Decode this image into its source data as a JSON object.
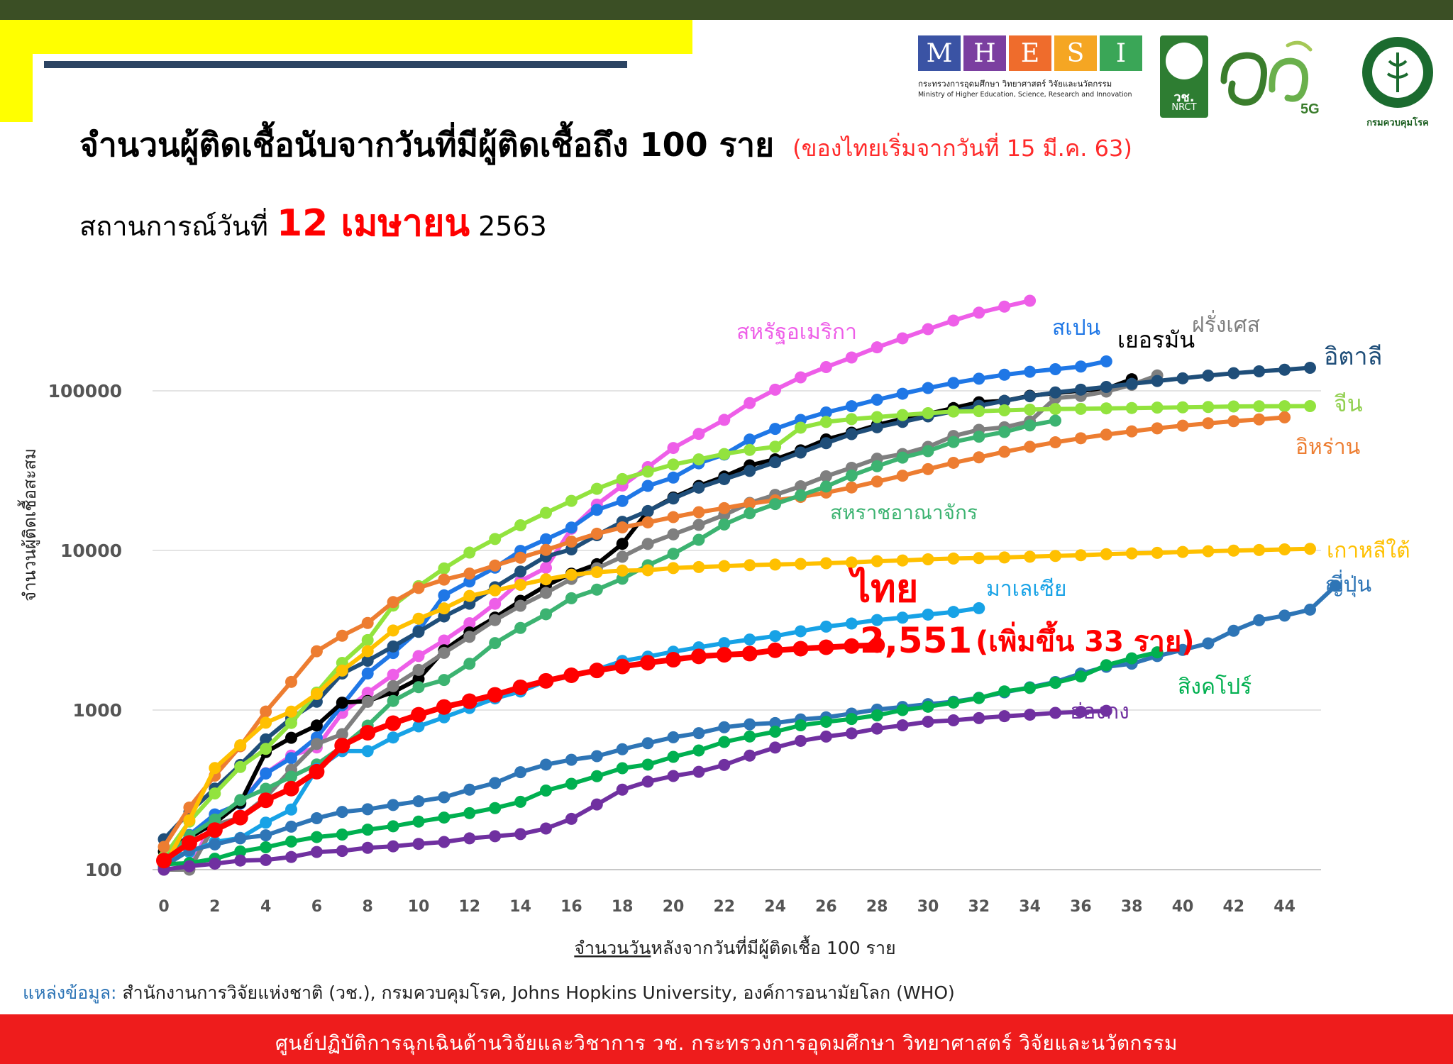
{
  "header": {
    "title": "จำนวนผู้ติดเชื้อนับจากวันที่มีผู้ติดเชื้อถึง 100 ราย",
    "title_note": "(ของไทยเริ่มจากวันที่ 15 มี.ค. 63)",
    "subtitle_prefix": "สถานการณ์วันที่",
    "subtitle_date": "12 เมษายน",
    "subtitle_year": "2563"
  },
  "logos": {
    "mhesi_letters": [
      "M",
      "H",
      "E",
      "S",
      "I"
    ],
    "mhesi_colors": [
      "#3a53a4",
      "#7b3fa0",
      "#ef6c2c",
      "#f5a623",
      "#3aa657"
    ],
    "mhesi_thai": "กระทรวงการอุดมศึกษา วิทยาศาสตร์ วิจัยและนวัตกรรม",
    "mhesi_english": "Ministry of Higher Education, Science, Research and Innovation",
    "nrct_thai": "วช.",
    "nrct_english": "NRCT",
    "anniversary_5g": "5G",
    "moph_thai": "กรมควบคุมโรค"
  },
  "source": {
    "label": "แหล่งข้อมูล:",
    "text": "สำนักงานการวิจัยแห่งชาติ (วช.), กรมควบคุมโรค, Johns Hopkins University, องค์การอนามัยโลก (WHO)"
  },
  "footer": {
    "text": "ศูนย์ปฏิบัติการฉุกเฉินด้านวิจัยและวิชาการ   วช.   กระทรวงการอุดมศึกษา วิทยาศาสตร์ วิจัยและนวัตกรรม"
  },
  "chart_data": {
    "type": "line",
    "scale": "log",
    "xlabel_underlined": "จำนวนวัน",
    "xlabel_rest": "หลังจากวันที่มีผู้ติดเชื้อ 100 ราย",
    "ylabel": "จำนวนผู้ติดเชื้อสะสม",
    "xlim": [
      0,
      45.5
    ],
    "ylim": [
      100,
      450000
    ],
    "x_ticks": [
      0,
      2,
      4,
      6,
      8,
      10,
      12,
      14,
      16,
      18,
      20,
      22,
      24,
      26,
      28,
      30,
      32,
      34,
      36,
      38,
      40,
      42,
      44
    ],
    "y_ticks": [
      100,
      1000,
      10000,
      100000
    ],
    "y_tick_labels": [
      "100",
      "1000",
      "10000",
      "100000"
    ],
    "thailand_annotation": {
      "name": "ไทย",
      "value": "2,551",
      "increase": "(เพิ่มขึ้น 33 ราย)"
    },
    "series": [
      {
        "name": "สหรัฐอเมริกา",
        "color": "#ee5ee8",
        "values": [
          100,
          101,
          212,
          262,
          402,
          518,
          583,
          959,
          1281,
          1663,
          2179,
          2727,
          3499,
          4632,
          6421,
          7786,
          13680,
          19383,
          25493,
          33276,
          43847,
          53740,
          65778,
          83836,
          101657,
          121478,
          140886,
          161807,
          187302,
          213372,
          243453,
          275586,
          308850,
          337072,
          366667
        ]
      },
      {
        "name": "สเปน",
        "color": "#1f77e6",
        "values": [
          120,
          165,
          222,
          259,
          400,
          500,
          673,
          1073,
          1695,
          2277,
          3146,
          5232,
          6391,
          7798,
          9942,
          11748,
          13910,
          17963,
          20410,
          25374,
          28603,
          35136,
          39885,
          49515,
          57786,
          65719,
          73235,
          80110,
          87956,
          95923,
          104118,
          112065,
          119199,
          126168,
          131646,
          136675,
          141942,
          153000
        ]
      },
      {
        "name": "เยอรมัน",
        "color": "#000000",
        "values": [
          130,
          159,
          196,
          262,
          545,
          670,
          800,
          1112,
          1139,
          1296,
          1567,
          2369,
          3062,
          3795,
          4838,
          6012,
          7156,
          8198,
          10999,
          17588,
          21463,
          25346,
          29047,
          34143,
          37231,
          42403,
          49614,
          54678,
          61086,
          66885,
          71808,
          77981,
          84794,
          86500,
          93100,
          96800,
          100300,
          103228,
          118181
        ]
      },
      {
        "name": "ฝรั่งเศส",
        "color": "#7f7f7f",
        "values": [
          100,
          100,
          191,
          212,
          285,
          423,
          613,
          706,
          1126,
          1412,
          1784,
          2281,
          2876,
          3661,
          4499,
          5423,
          6633,
          7730,
          9134,
          10995,
          12612,
          14459,
          16689,
          19856,
          22304,
          25233,
          29155,
          32964,
          37575,
          40174,
          44550,
          52128,
          56989,
          59105,
          64338,
          89953,
          92839,
          98984,
          109069,
          124869
        ]
      },
      {
        "name": "อิตาลี",
        "color": "#1f4e79",
        "values": [
          155,
          229,
          322,
          453,
          655,
          888,
          1128,
          1694,
          2036,
          2502,
          3089,
          3858,
          4636,
          5883,
          7375,
          9172,
          10149,
          12462,
          15113,
          17660,
          21157,
          24747,
          27980,
          31506,
          35713,
          41035,
          47021,
          53578,
          59138,
          63927,
          69176,
          74386,
          80589,
          86498,
          92472,
          97689,
          101739,
          105792,
          110574,
          115242,
          119827,
          124632,
          128948,
          132547,
          135586,
          139422
        ]
      },
      {
        "name": "จีน",
        "color": "#92e33e",
        "values": [
          120,
          200,
          300,
          440,
          571,
          830,
          1287,
          1975,
          2744,
          4515,
          5974,
          7711,
          9692,
          11791,
          14380,
          17205,
          20438,
          24324,
          28018,
          31161,
          34546,
          37198,
          40171,
          42638,
          44653,
          58761,
          63851,
          66492,
          68500,
          70548,
          72436,
          74185,
          74576,
          75465,
          76288,
          76936,
          77150,
          77658,
          78064,
          78497,
          78824,
          79251,
          79824,
          80026,
          80151,
          80271
        ]
      },
      {
        "name": "อิหร่าน",
        "color": "#ed7d31",
        "values": [
          139,
          245,
          388,
          593,
          978,
          1501,
          2336,
          2922,
          3513,
          4747,
          5823,
          6566,
          7161,
          8042,
          9000,
          10075,
          11364,
          12729,
          13938,
          14991,
          16169,
          17361,
          18407,
          19644,
          20610,
          21638,
          23049,
          24811,
          27017,
          29406,
          32332,
          35408,
          38309,
          41495,
          44605,
          47593,
          50468,
          53183,
          55743,
          58226,
          60500,
          62589,
          64586,
          66220,
          68192
        ]
      },
      {
        "name": "สหราชอาณาจักร",
        "color": "#3cb371",
        "values": [
          115,
          163,
          206,
          273,
          321,
          382,
          456,
          590,
          798,
          1140,
          1391,
          1543,
          1950,
          2626,
          3269,
          3983,
          5018,
          5683,
          6650,
          8077,
          9529,
          11658,
          14543,
          17089,
          19522,
          22141,
          25150,
          29474,
          33718,
          38168,
          41903,
          47806,
          51608,
          55242,
          60733,
          65077
        ]
      },
      {
        "name": "เกาหลีใต้",
        "color": "#ffc000",
        "values": [
          104,
          204,
          433,
          602,
          833,
          977,
          1261,
          1766,
          2337,
          3150,
          3736,
          4335,
          5186,
          5621,
          6088,
          6593,
          7041,
          7314,
          7478,
          7513,
          7755,
          7869,
          7979,
          8086,
          8162,
          8236,
          8320,
          8413,
          8565,
          8652,
          8799,
          8897,
          8961,
          9037,
          9137,
          9241,
          9332,
          9478,
          9583,
          9661,
          9786,
          9887,
          9976,
          10062,
          10156,
          10237
        ]
      },
      {
        "name": "มาเลเซีย",
        "color": "#17a2e6",
        "values": [
          117,
          129,
          149,
          158,
          197,
          238,
          428,
          553,
          553,
          673,
          790,
          900,
          1030,
          1183,
          1306,
          1518,
          1624,
          1796,
          2031,
          2161,
          2320,
          2470,
          2626,
          2766,
          2908,
          3116,
          3333,
          3483,
          3662,
          3793,
          3963,
          4119,
          4346
        ]
      },
      {
        "name": "ไทย",
        "color": "#ff0000",
        "values": [
          114,
          147,
          177,
          212,
          272,
          322,
          411,
          599,
          721,
          827,
          934,
          1045,
          1136,
          1245,
          1388,
          1524,
          1651,
          1771,
          1875,
          1978,
          2067,
          2169,
          2220,
          2258,
          2369,
          2423,
          2473,
          2518,
          2551
        ]
      },
      {
        "name": "ญี่ปุ่น",
        "color": "#2e75b6",
        "values": [
          105,
          132,
          144,
          157,
          164,
          186,
          210,
          230,
          239,
          254,
          268,
          284,
          317,
          349,
          408,
          455,
          488,
          514,
          568,
          620,
          675,
          716,
          780,
          814,
          829,
          873,
          900,
          950,
          1007,
          1046,
          1089,
          1128,
          1193,
          1291,
          1387,
          1499,
          1693,
          1866,
          1953,
          2178,
          2381,
          2617,
          3139,
          3654,
          3906,
          4257,
          6005
        ]
      },
      {
        "name": "สิงคโปร์",
        "color": "#00b050",
        "values": [
          108,
          110,
          117,
          130,
          138,
          150,
          160,
          166,
          178,
          187,
          200,
          212,
          226,
          243,
          266,
          313,
          345,
          385,
          432,
          455,
          509,
          558,
          631,
          683,
          732,
          802,
          844,
          879,
          926,
          1000,
          1049,
          1114,
          1189,
          1309,
          1375,
          1481,
          1623,
          1910,
          2108,
          2299
        ]
      },
      {
        "name": "ฮ่องกง",
        "color": "#7030a0",
        "values": [
          100,
          105,
          109,
          114,
          115,
          120,
          129,
          131,
          137,
          140,
          145,
          149,
          157,
          162,
          167,
          181,
          208,
          256,
          317,
          356,
          386,
          410,
          453,
          518,
          582,
          641,
          682,
          714,
          765,
          802,
          845,
          862,
          890,
          915,
          935,
          960,
          974,
          989
        ]
      }
    ],
    "series_labels": [
      {
        "text": "สหรัฐอเมริกา",
        "color": "#ee5ee8"
      },
      {
        "text": "สเปน",
        "color": "#1f77e6"
      },
      {
        "text": "เยอรมัน",
        "color": "#000000"
      },
      {
        "text": "ฝรั่งเศส",
        "color": "#7f7f7f"
      },
      {
        "text": "อิตาลี",
        "color": "#1f4e79"
      },
      {
        "text": "จีน",
        "color": "#92d050"
      },
      {
        "text": "อิหร่าน",
        "color": "#ed7d31"
      },
      {
        "text": "สหราชอาณาจักร",
        "color": "#3cb371"
      },
      {
        "text": "เกาหลีใต้",
        "color": "#ffc000"
      },
      {
        "text": "มาเลเซีย",
        "color": "#17a2e6"
      },
      {
        "text": "ญี่ปุ่น",
        "color": "#2e75b6"
      },
      {
        "text": "สิงคโปร์",
        "color": "#00b050"
      },
      {
        "text": "ฮ่องกง",
        "color": "#7030a0"
      }
    ]
  }
}
